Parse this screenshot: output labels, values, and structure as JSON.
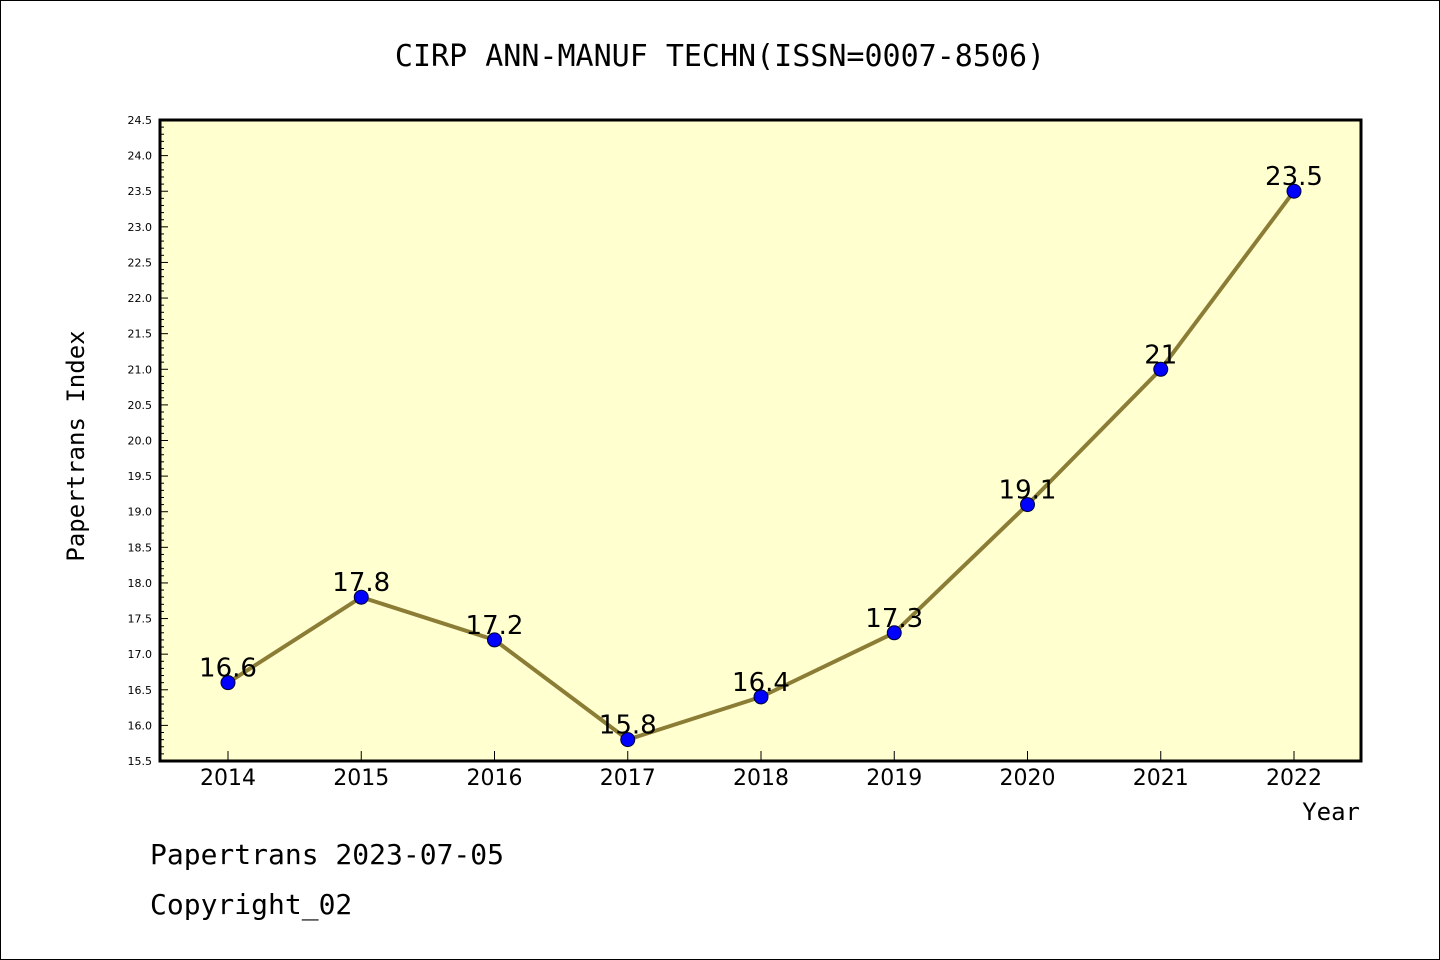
{
  "chart_data": {
    "type": "line",
    "title": "CIRP ANN-MANUF TECHN(ISSN=0007-8506)",
    "xlabel": "Year",
    "ylabel": "Papertrans Index",
    "categories": [
      "2014",
      "2015",
      "2016",
      "2017",
      "2018",
      "2019",
      "2020",
      "2021",
      "2022"
    ],
    "series": [
      {
        "values": [
          16.6,
          17.8,
          17.2,
          15.8,
          16.4,
          17.3,
          19.1,
          21,
          23.5
        ]
      }
    ],
    "data_labels": [
      "16.6",
      "17.8",
      "17.2",
      "15.8",
      "16.4",
      "17.3",
      "19.1",
      "21",
      "23.5"
    ],
    "ylim": [
      15.5,
      24.5
    ],
    "y_ticks": [
      "15.5",
      "16.0",
      "16.5",
      "17.0",
      "17.5",
      "18.0",
      "18.5",
      "19.0",
      "19.5",
      "20.0",
      "20.5",
      "21.0",
      "21.5",
      "22.0",
      "22.5",
      "23.0",
      "23.5",
      "24.0",
      "24.5"
    ],
    "colors": {
      "plot_background": "#ffffd0",
      "line": "#8b7d35",
      "marker": "#0000ff"
    },
    "grid": false,
    "legend": "none"
  },
  "footer": {
    "line1": "Papertrans 2023-07-05",
    "line2": "Copyright_02"
  }
}
